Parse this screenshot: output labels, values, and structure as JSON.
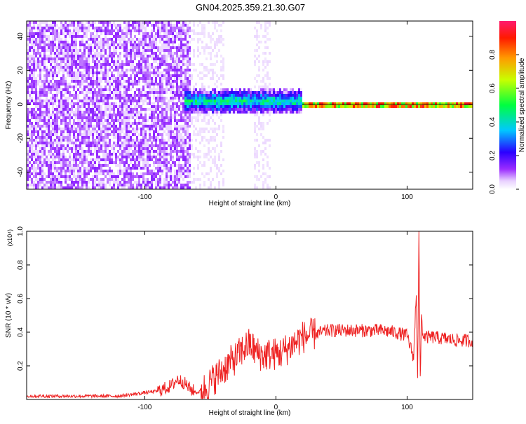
{
  "title": "GN04.2025.359.21.30.G07",
  "chart_data": [
    {
      "type": "heatmap",
      "xlabel": "Height of straight line (km)",
      "ylabel": "Frequency (Hz)",
      "xlim": [
        -190,
        150
      ],
      "ylim": [
        -50,
        49
      ],
      "x_ticks": [
        -100,
        0,
        100
      ],
      "x_tick_labels": [
        "-100",
        "0",
        "100"
      ],
      "y_ticks": [
        -40,
        -20,
        0,
        20,
        40
      ],
      "y_tick_labels": [
        "-40",
        "-20",
        "0",
        "20",
        "40"
      ],
      "colorbar": {
        "label": "Normalized spectral amplitude",
        "range": [
          0,
          1
        ],
        "ticks": [
          0.0,
          0.2,
          0.4,
          0.6,
          0.8
        ],
        "tick_labels": [
          "0.0",
          "0.2",
          "0.4",
          "0.6",
          "0.8"
        ],
        "colormap": [
          "#ffffff",
          "#e6ccff",
          "#8800ff",
          "#0000ff",
          "#00ffff",
          "#00ff00",
          "#ffff00",
          "#ff8800",
          "#ff0000",
          "#ff0066"
        ]
      },
      "regions": [
        {
          "x_range": [
            -190,
            -65
          ],
          "freq_range": [
            -50,
            49
          ],
          "amplitude": 0.12,
          "pattern": "noise"
        },
        {
          "x_range": [
            -65,
            -40
          ],
          "freq_range": [
            -50,
            49
          ],
          "amplitude": 0.05,
          "pattern": "sparse"
        },
        {
          "x_range": [
            -18,
            -5
          ],
          "freq_range": [
            -50,
            49
          ],
          "amplitude": 0.05,
          "pattern": "sparse"
        },
        {
          "x_range": [
            -70,
            20
          ],
          "freq_range": [
            -5,
            10
          ],
          "amplitude": 0.45,
          "pattern": "band"
        },
        {
          "x_range": [
            20,
            150
          ],
          "freq_range": [
            -2,
            2
          ],
          "amplitude": 0.95,
          "pattern": "line"
        }
      ]
    },
    {
      "type": "line",
      "xlabel": "Height of straight line (km)",
      "ylabel": "SNR (10 * v/v)",
      "y_multiplier_label": "(x10⁴)",
      "xlim": [
        -190,
        150
      ],
      "ylim": [
        0,
        1.0
      ],
      "x_ticks": [
        -100,
        0,
        100
      ],
      "x_tick_labels": [
        "-100",
        "0",
        "100"
      ],
      "y_ticks": [
        0.2,
        0.4,
        0.6,
        0.8,
        1.0
      ],
      "y_tick_labels": [
        "0.2",
        "0.4",
        "0.6",
        "0.8",
        "1.0"
      ],
      "color": "#ee2222",
      "series": [
        {
          "x": [
            -190,
            -180,
            -160,
            -140,
            -120,
            -110,
            -100,
            -90,
            -80,
            -75,
            -70,
            -65,
            -60,
            -55,
            -50,
            -45,
            -40,
            -35,
            -30,
            -25,
            -20,
            -15,
            -10,
            -5,
            0,
            5,
            10,
            15,
            20,
            25,
            30,
            35,
            40,
            50,
            60,
            70,
            80,
            90,
            100,
            103,
            105,
            107,
            108,
            109,
            110,
            111,
            112,
            115,
            120,
            130,
            140,
            150
          ],
          "y": [
            0.02,
            0.02,
            0.02,
            0.02,
            0.02,
            0.03,
            0.04,
            0.05,
            0.08,
            0.12,
            0.1,
            0.06,
            0.04,
            0.06,
            0.1,
            0.14,
            0.18,
            0.22,
            0.25,
            0.3,
            0.33,
            0.28,
            0.26,
            0.27,
            0.27,
            0.28,
            0.31,
            0.34,
            0.37,
            0.38,
            0.39,
            0.4,
            0.41,
            0.41,
            0.41,
            0.41,
            0.41,
            0.4,
            0.38,
            0.3,
            0.25,
            0.65,
            0.15,
            1.0,
            0.1,
            0.5,
            0.38,
            0.37,
            0.37,
            0.36,
            0.35,
            0.35
          ]
        }
      ]
    }
  ]
}
